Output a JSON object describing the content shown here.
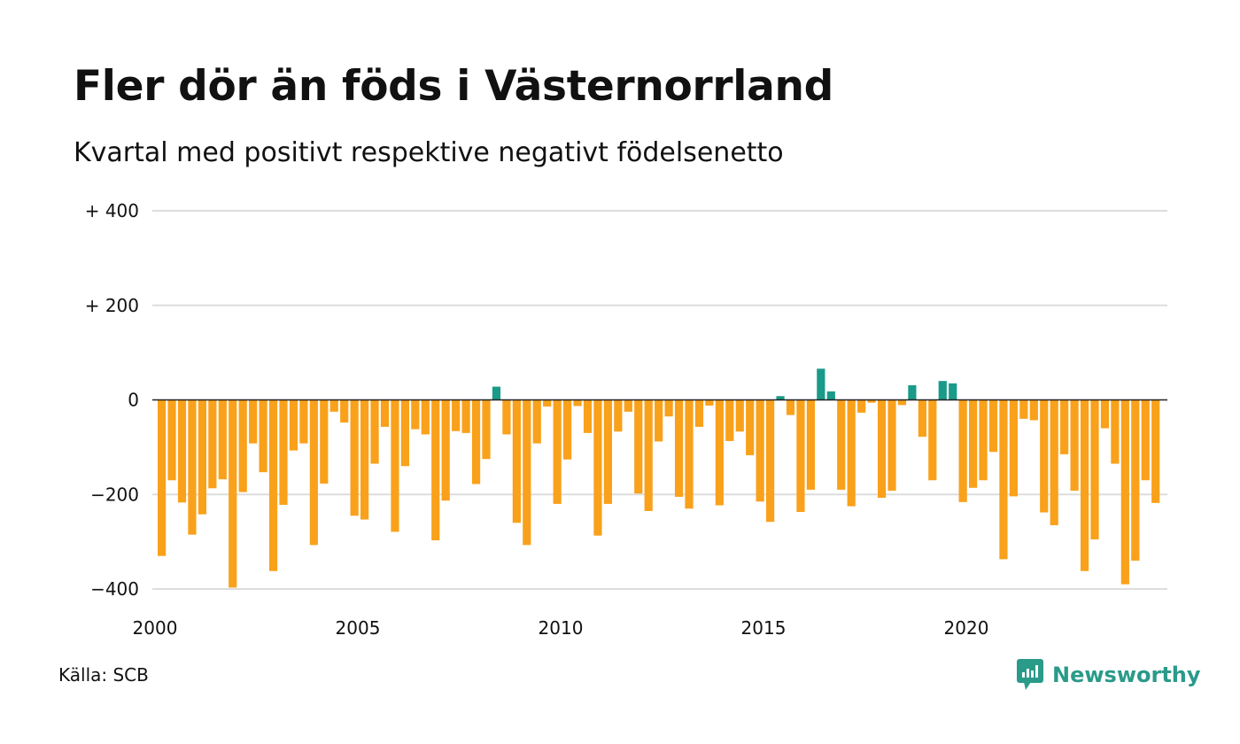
{
  "title": "Fler dör än föds i Västernorrland",
  "subtitle": "Kvartal med positivt respektive negativt födelsenetto",
  "source": "Källa: SCB",
  "brand": "Newsworthy",
  "colors": {
    "negative": "#f9a11b",
    "positive": "#1a9a89",
    "brand": "#2a9a89",
    "grid": "#dddddd",
    "baseline": "#222222"
  },
  "chart_data": {
    "type": "bar",
    "x_start": 2000,
    "periods_per_year": 4,
    "ylim": [
      -400,
      400
    ],
    "yticks": [
      400,
      200,
      0,
      -200,
      -400
    ],
    "ytick_labels": [
      "+ 400",
      "+ 200",
      "0",
      "−200",
      "−400"
    ],
    "xticks": [
      2000,
      2005,
      2010,
      2015,
      2020
    ],
    "xtick_labels": [
      "2000",
      "2005",
      "2010",
      "2015",
      "2020"
    ],
    "values": [
      -330,
      -170,
      -217,
      -285,
      -242,
      -187,
      -168,
      -397,
      -195,
      -92,
      -153,
      -362,
      -222,
      -107,
      -92,
      -307,
      -177,
      -25,
      -48,
      -245,
      -253,
      -135,
      -57,
      -279,
      -140,
      -62,
      -73,
      -297,
      -213,
      -66,
      -70,
      -178,
      -125,
      28,
      -73,
      -260,
      -307,
      -92,
      -14,
      -220,
      -126,
      -13,
      -70,
      -287,
      -220,
      -67,
      -25,
      -198,
      -235,
      -88,
      -35,
      -205,
      -230,
      -57,
      -12,
      -223,
      -87,
      -67,
      -117,
      -215,
      -258,
      8,
      -32,
      -237,
      -190,
      66,
      18,
      -190,
      -225,
      -27,
      -6,
      -207,
      -192,
      -11,
      31,
      -78,
      -170,
      40,
      35,
      -216,
      -186,
      -170,
      -110,
      -337,
      -204,
      -40,
      -43,
      -238,
      -265,
      -115,
      -192,
      -362,
      -295,
      -60,
      -135,
      -390,
      -340,
      -170,
      -218
    ]
  }
}
